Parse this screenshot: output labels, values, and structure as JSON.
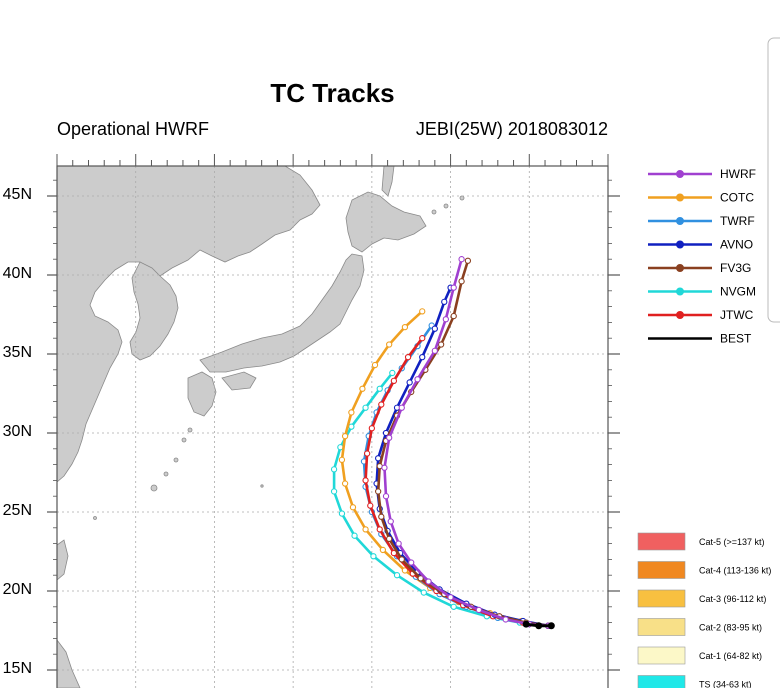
{
  "title": "TC Tracks",
  "subtitle_left": "Operational HWRF",
  "subtitle_right": "JEBI(25W) 2018083012",
  "lat_labels": [
    "45N",
    "40N",
    "35N",
    "30N",
    "25N",
    "20N",
    "15N"
  ],
  "lat_values": [
    45,
    40,
    35,
    30,
    25,
    20,
    15
  ],
  "map_extent": {
    "lon_min": 115,
    "lon_max": 150,
    "lat_min": 14,
    "lat_max": 46.5
  },
  "colors": {
    "HWRF": "#a040d0",
    "COTC": "#f0a020",
    "TWRF": "#3090e0",
    "AVNO": "#1020c0",
    "FV3G": "#8a4020",
    "NVGM": "#20d8d8",
    "JTWC": "#e02020",
    "BEST": "#000000",
    "land": "#cccccc",
    "coast": "#888888",
    "grid": "#aaaaaa"
  },
  "legend": [
    {
      "key": "HWRF",
      "label": "HWRF",
      "icon": "circle-marker"
    },
    {
      "key": "COTC",
      "label": "COTC",
      "icon": "circle-marker"
    },
    {
      "key": "TWRF",
      "label": "TWRF",
      "icon": "circle-marker"
    },
    {
      "key": "AVNO",
      "label": "AVNO",
      "icon": "circle-marker"
    },
    {
      "key": "FV3G",
      "label": "FV3G",
      "icon": "circle-marker"
    },
    {
      "key": "NVGM",
      "label": "NVGM",
      "icon": "circle-marker"
    },
    {
      "key": "JTWC",
      "label": "JTWC",
      "icon": "circle-marker"
    },
    {
      "key": "BEST",
      "label": "BEST",
      "icon": "hurricane-icon"
    }
  ],
  "intensity_legend": [
    {
      "label": "Cat-5 (>=137 kt)",
      "color": "#f06060"
    },
    {
      "label": "Cat-4 (113-136 kt)",
      "color": "#f08820"
    },
    {
      "label": "Cat-3 (96-112 kt)",
      "color": "#f8c040"
    },
    {
      "label": "Cat-2 (83-95 kt)",
      "color": "#f8e088"
    },
    {
      "label": "Cat-1 (64-82 kt)",
      "color": "#fcf8c8"
    },
    {
      "label": "TS (34-63 kt)",
      "color": "#20e8e8"
    }
  ],
  "tracks": {
    "HWRF": [
      [
        146.2,
        17.8
      ],
      [
        145.0,
        17.9
      ],
      [
        143.5,
        18.2
      ],
      [
        141.8,
        18.8
      ],
      [
        140.0,
        19.6
      ],
      [
        138.6,
        20.6
      ],
      [
        137.5,
        21.8
      ],
      [
        136.7,
        23.0
      ],
      [
        136.2,
        24.4
      ],
      [
        135.9,
        26.0
      ],
      [
        135.8,
        27.8
      ],
      [
        136.1,
        29.7
      ],
      [
        136.9,
        31.6
      ],
      [
        137.9,
        33.4
      ],
      [
        139.0,
        35.2
      ],
      [
        139.7,
        37.2
      ],
      [
        140.2,
        39.2
      ],
      [
        140.7,
        41.0
      ]
    ],
    "COTC": [
      [
        146.2,
        17.8
      ],
      [
        144.5,
        18.1
      ],
      [
        142.5,
        18.6
      ],
      [
        140.5,
        19.3
      ],
      [
        138.7,
        20.2
      ],
      [
        137.1,
        21.3
      ],
      [
        135.7,
        22.6
      ],
      [
        134.6,
        23.9
      ],
      [
        133.8,
        25.3
      ],
      [
        133.3,
        26.8
      ],
      [
        133.1,
        28.3
      ],
      [
        133.3,
        29.8
      ],
      [
        133.7,
        31.3
      ],
      [
        134.4,
        32.8
      ],
      [
        135.2,
        34.3
      ],
      [
        136.1,
        35.6
      ],
      [
        137.1,
        36.7
      ],
      [
        138.2,
        37.7
      ]
    ],
    "TWRF": [
      [
        146.2,
        17.8
      ],
      [
        144.8,
        18.0
      ],
      [
        143.0,
        18.3
      ],
      [
        141.0,
        19.0
      ],
      [
        139.3,
        19.8
      ],
      [
        137.8,
        20.9
      ],
      [
        136.6,
        22.2
      ],
      [
        135.6,
        23.6
      ],
      [
        135.0,
        25.0
      ],
      [
        134.6,
        26.6
      ],
      [
        134.5,
        28.2
      ],
      [
        134.8,
        29.8
      ],
      [
        135.3,
        31.3
      ],
      [
        136.0,
        32.7
      ],
      [
        136.9,
        34.1
      ],
      [
        137.9,
        35.5
      ],
      [
        138.8,
        36.8
      ]
    ],
    "AVNO": [
      [
        146.2,
        17.8
      ],
      [
        144.6,
        18.1
      ],
      [
        142.8,
        18.5
      ],
      [
        141.0,
        19.2
      ],
      [
        139.3,
        20.1
      ],
      [
        137.9,
        21.2
      ],
      [
        136.8,
        22.4
      ],
      [
        136.0,
        23.8
      ],
      [
        135.5,
        25.2
      ],
      [
        135.3,
        26.8
      ],
      [
        135.4,
        28.4
      ],
      [
        135.9,
        30.0
      ],
      [
        136.6,
        31.6
      ],
      [
        137.4,
        33.2
      ],
      [
        138.2,
        34.8
      ],
      [
        139.0,
        36.6
      ],
      [
        139.6,
        38.3
      ],
      [
        140.0,
        39.2
      ]
    ],
    "FV3G": [
      [
        146.2,
        17.8
      ],
      [
        144.8,
        18.0
      ],
      [
        143.1,
        18.4
      ],
      [
        141.3,
        19.0
      ],
      [
        139.6,
        19.8
      ],
      [
        138.1,
        20.8
      ],
      [
        136.9,
        22.0
      ],
      [
        136.1,
        23.3
      ],
      [
        135.6,
        24.7
      ],
      [
        135.4,
        26.3
      ],
      [
        135.5,
        27.9
      ],
      [
        135.9,
        29.5
      ],
      [
        136.6,
        31.1
      ],
      [
        137.5,
        32.6
      ],
      [
        138.4,
        34.0
      ],
      [
        139.4,
        35.6
      ],
      [
        140.2,
        37.4
      ],
      [
        140.7,
        39.6
      ],
      [
        141.1,
        40.9
      ]
    ],
    "NVGM": [
      [
        146.2,
        17.8
      ],
      [
        144.4,
        18.0
      ],
      [
        142.3,
        18.4
      ],
      [
        140.2,
        19.0
      ],
      [
        138.3,
        19.9
      ],
      [
        136.6,
        21.0
      ],
      [
        135.1,
        22.2
      ],
      [
        133.9,
        23.5
      ],
      [
        133.1,
        24.9
      ],
      [
        132.6,
        26.3
      ],
      [
        132.6,
        27.7
      ],
      [
        133.0,
        29.1
      ],
      [
        133.7,
        30.4
      ],
      [
        134.6,
        31.6
      ],
      [
        135.5,
        32.8
      ],
      [
        136.3,
        33.8
      ]
    ],
    "JTWC": [
      [
        146.2,
        17.8
      ],
      [
        144.6,
        18.0
      ],
      [
        142.7,
        18.4
      ],
      [
        140.8,
        19.1
      ],
      [
        139.1,
        20.0
      ],
      [
        137.6,
        21.1
      ],
      [
        136.4,
        22.4
      ],
      [
        135.5,
        23.9
      ],
      [
        134.9,
        25.4
      ],
      [
        134.6,
        27.0
      ],
      [
        134.7,
        28.7
      ],
      [
        135.0,
        30.3
      ],
      [
        135.6,
        31.8
      ],
      [
        136.4,
        33.3
      ],
      [
        137.3,
        34.8
      ],
      [
        138.2,
        36.0
      ]
    ],
    "BEST": [
      [
        146.4,
        17.8
      ],
      [
        145.6,
        17.8
      ],
      [
        144.8,
        17.9
      ]
    ]
  }
}
